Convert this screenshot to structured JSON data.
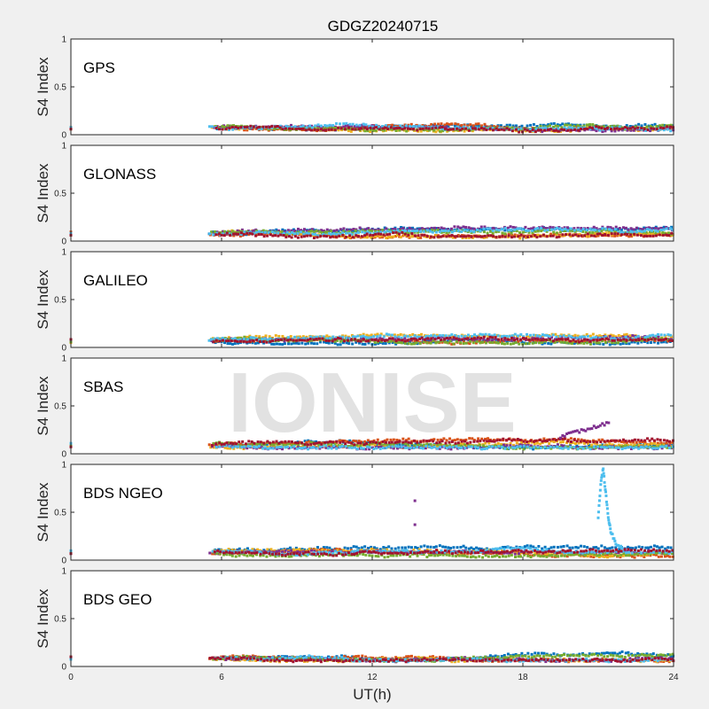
{
  "title": "GDGZ20240715",
  "watermark": "IONISE",
  "colors": {
    "background": "#f0f0f0",
    "axes_bg": "#ffffff",
    "series": [
      "#0072BD",
      "#D95319",
      "#EDB120",
      "#7E2F8E",
      "#77AC30",
      "#4DBEEE",
      "#A2142F"
    ]
  },
  "chart_data": [
    {
      "type": "scatter",
      "label": "GPS",
      "ylabel": "S4 Index",
      "xlim": [
        0,
        24
      ],
      "ylim": [
        0,
        1
      ],
      "yticks": [
        0,
        0.5,
        1
      ],
      "ytick_labels": [
        "0",
        "0.5",
        "1"
      ],
      "grid": false,
      "data_start_ut": 5.5,
      "data_end_ut": 24,
      "typical_s4": 0.07,
      "s4_range": [
        0.03,
        0.16
      ]
    },
    {
      "type": "scatter",
      "label": "GLONASS",
      "ylabel": "S4 Index",
      "xlim": [
        0,
        24
      ],
      "ylim": [
        0,
        1
      ],
      "yticks": [
        0,
        0.5,
        1
      ],
      "ytick_labels": [
        "0",
        "0.5",
        "1"
      ],
      "grid": false,
      "data_start_ut": 5.5,
      "data_end_ut": 24,
      "typical_s4": 0.08,
      "s4_range": [
        0.03,
        0.2
      ]
    },
    {
      "type": "scatter",
      "label": "GALILEO",
      "ylabel": "S4 Index",
      "xlim": [
        0,
        24
      ],
      "ylim": [
        0,
        1
      ],
      "yticks": [
        0,
        0.5,
        1
      ],
      "ytick_labels": [
        "0",
        "0.5",
        "1"
      ],
      "grid": false,
      "data_start_ut": 5.5,
      "data_end_ut": 24,
      "typical_s4": 0.07,
      "s4_range": [
        0.03,
        0.17
      ]
    },
    {
      "type": "scatter",
      "label": "SBAS",
      "ylabel": "S4 Index",
      "xlim": [
        0,
        24
      ],
      "ylim": [
        0,
        1
      ],
      "yticks": [
        0,
        0.5,
        1
      ],
      "ytick_labels": [
        "0",
        "0.5",
        "1"
      ],
      "grid": false,
      "data_start_ut": 5.5,
      "data_end_ut": 24,
      "typical_s4": 0.09,
      "s4_range": [
        0.05,
        0.35
      ],
      "event": {
        "series": 3,
        "x": [
          19.5,
          20.0,
          20.5,
          21.0,
          21.5
        ],
        "y": [
          0.18,
          0.22,
          0.25,
          0.29,
          0.33
        ]
      }
    },
    {
      "type": "scatter",
      "label": "BDS NGEO",
      "ylabel": "S4 Index",
      "xlim": [
        0,
        24
      ],
      "ylim": [
        0,
        1
      ],
      "yticks": [
        0,
        0.5,
        1
      ],
      "ytick_labels": [
        "0",
        "0.5",
        "1"
      ],
      "grid": false,
      "data_start_ut": 5.5,
      "data_end_ut": 24,
      "typical_s4": 0.08,
      "s4_range": [
        0.03,
        0.95
      ],
      "event": {
        "series": 5,
        "x": [
          21.0,
          21.1,
          21.2,
          21.3,
          21.4,
          21.5,
          21.7,
          22.0
        ],
        "y": [
          0.45,
          0.8,
          0.95,
          0.7,
          0.45,
          0.3,
          0.18,
          0.12
        ]
      },
      "outliers": {
        "series": 3,
        "x": [
          13.7,
          13.7
        ],
        "y": [
          0.62,
          0.37
        ]
      }
    },
    {
      "type": "scatter",
      "label": "BDS GEO",
      "ylabel": "S4 Index",
      "xlim": [
        0,
        24
      ],
      "ylim": [
        0,
        1
      ],
      "yticks": [
        0,
        0.5,
        1
      ],
      "ytick_labels": [
        "0",
        "0.5",
        "1"
      ],
      "grid": false,
      "data_start_ut": 5.5,
      "data_end_ut": 24,
      "typical_s4": 0.09,
      "s4_range": [
        0.05,
        0.16
      ]
    }
  ],
  "xaxis": {
    "label": "UT(h)",
    "ticks": [
      0,
      6,
      12,
      18,
      24
    ],
    "tick_labels": [
      "0",
      "6",
      "12",
      "18",
      "24"
    ]
  }
}
